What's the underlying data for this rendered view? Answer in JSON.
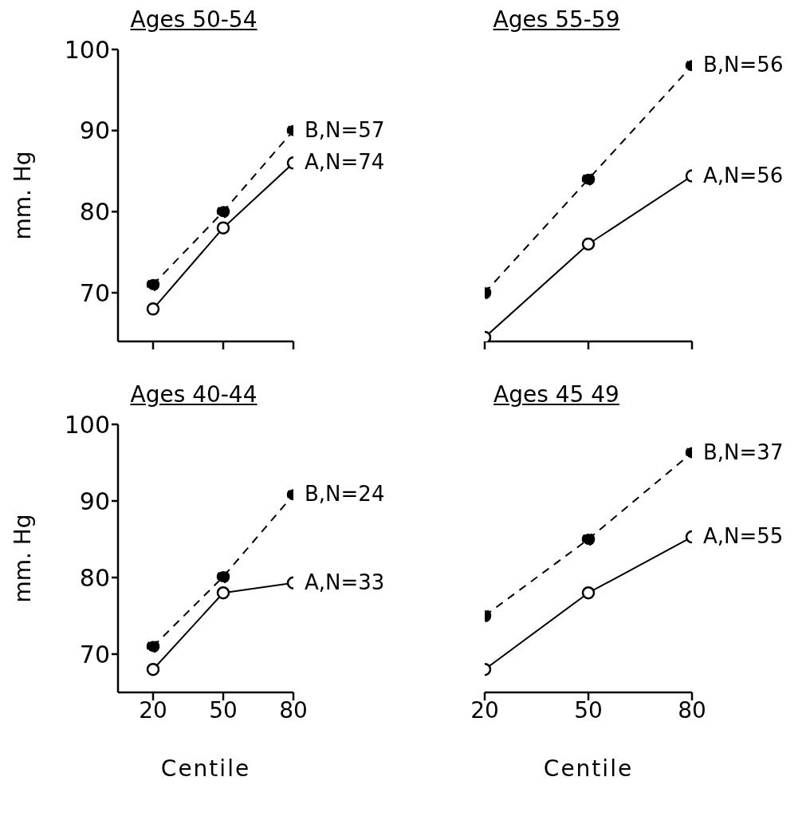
{
  "chart_data": [
    {
      "type": "line",
      "title": "Ages 50-54",
      "ylabel": "mm. Hg",
      "x": [
        20,
        50,
        80
      ],
      "xlim": [
        5,
        80
      ],
      "xticks": [
        20,
        50,
        80
      ],
      "ylim": [
        64,
        100
      ],
      "yticks": [
        70,
        80,
        90,
        100
      ],
      "tick_labels": "y",
      "marker": "circle",
      "series": [
        {
          "name": "B,N=57",
          "color": "#000000",
          "line_style": "dashed",
          "values": [
            71,
            80,
            90
          ]
        },
        {
          "name": "A,N=74",
          "color": "#000000",
          "line_style": "solid",
          "values": [
            68,
            78,
            86
          ]
        }
      ]
    },
    {
      "type": "line",
      "title": "Ages 55-59",
      "x": [
        20,
        50,
        80
      ],
      "xlim": [
        20,
        80
      ],
      "xticks": [
        20,
        50,
        80
      ],
      "ylim": [
        64,
        100
      ],
      "yticks": [
        70,
        80,
        90,
        100
      ],
      "tick_labels": false,
      "marker": "circle",
      "series": [
        {
          "name": "B,N=56",
          "color": "#000000",
          "line_style": "dashed",
          "values": [
            70,
            84,
            98
          ]
        },
        {
          "name": "A,N=56",
          "color": "#000000",
          "line_style": "solid",
          "values": [
            64.5,
            76,
            84.4
          ]
        }
      ]
    },
    {
      "type": "line",
      "title": "Ages 40-44",
      "xlabel": "Centile",
      "ylabel": "mm. Hg",
      "x": [
        20,
        50,
        80
      ],
      "xlim": [
        5,
        80
      ],
      "xticks": [
        20,
        50,
        80
      ],
      "ylim": [
        65,
        100
      ],
      "yticks": [
        70,
        80,
        90,
        100
      ],
      "marker": "circle",
      "series": [
        {
          "name": "B,N=24",
          "color": "#000000",
          "line_style": "dashed",
          "values": [
            71,
            80.1,
            90.8
          ]
        },
        {
          "name": "A,N=33",
          "color": "#000000",
          "line_style": "solid",
          "values": [
            68,
            78,
            79.3
          ]
        }
      ]
    },
    {
      "type": "line",
      "title": "Ages 45 49",
      "xlabel": "Centile",
      "x": [
        20,
        50,
        80
      ],
      "xlim": [
        20,
        80
      ],
      "xticks": [
        20,
        50,
        80
      ],
      "ylim": [
        65,
        100
      ],
      "yticks": [
        70,
        80,
        90,
        100
      ],
      "tick_labels": "x",
      "marker": "circle",
      "series": [
        {
          "name": "B,N=37",
          "color": "#000000",
          "line_style": "dashed",
          "values": [
            75,
            85,
            96.3
          ]
        },
        {
          "name": "A,N=55",
          "color": "#000000",
          "line_style": "solid",
          "values": [
            68,
            78,
            85.3
          ]
        }
      ]
    }
  ]
}
